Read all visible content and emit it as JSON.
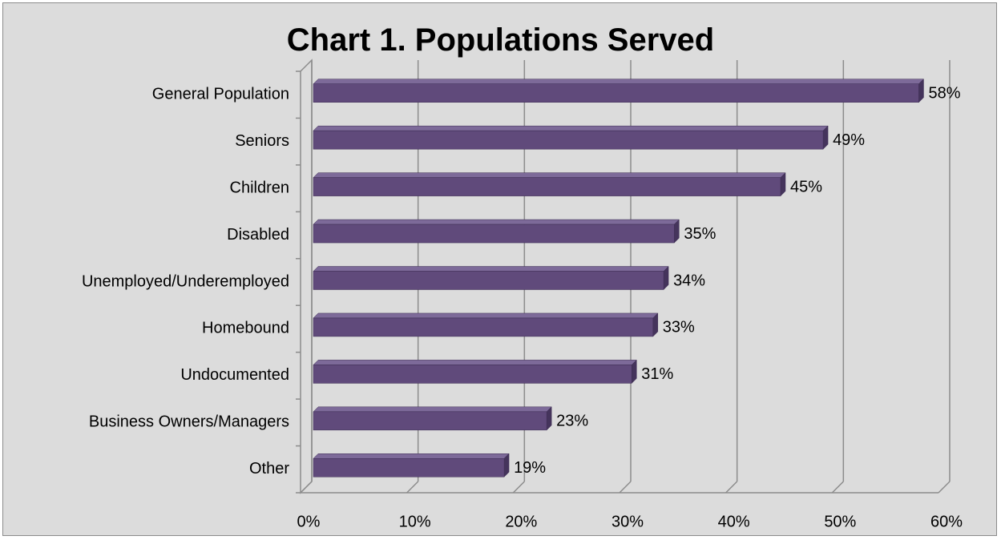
{
  "chart_data": {
    "type": "bar",
    "orientation": "horizontal",
    "title": "Chart 1. Populations Served",
    "xlabel": "",
    "ylabel": "",
    "categories": [
      "General Population",
      "Seniors",
      "Children",
      "Disabled",
      "Unemployed/Underemployed",
      "Homebound",
      "Undocumented",
      "Business Owners/Managers",
      "Other"
    ],
    "values": [
      58,
      49,
      45,
      35,
      34,
      33,
      31,
      23,
      19
    ],
    "data_labels": [
      "58%",
      "49%",
      "45%",
      "35%",
      "34%",
      "33%",
      "31%",
      "23%",
      "19%"
    ],
    "xlim": [
      0,
      60
    ],
    "x_ticks": [
      0,
      10,
      20,
      30,
      40,
      50,
      60
    ],
    "x_tick_labels": [
      "0%",
      "10%",
      "20%",
      "30%",
      "40%",
      "50%",
      "60%"
    ],
    "grid": true,
    "legend": "none",
    "style": "3d",
    "colors": {
      "bar_front": "#604a7b",
      "bar_top": "#7d6a99",
      "bar_side": "#45345c",
      "background": "#dcdcdc",
      "gridline": "#8c8c8c"
    }
  }
}
